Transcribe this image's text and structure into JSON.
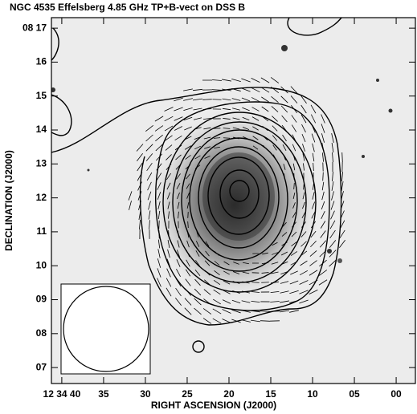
{
  "chart_data": {
    "type": "contour",
    "title": "NGC 4535 Effelsberg 4.85 GHz TP+B-vect on DSS B",
    "xlabel": "RIGHT ASCENSION (J2000)",
    "ylabel": "DECLINATION (J2000)",
    "xlim": [
      41.24,
      -2.3
    ],
    "xticks": [
      {
        "value": 40,
        "label": "12 34 40"
      },
      35,
      30,
      25,
      20,
      15,
      10,
      {
        "value": 5,
        "label": "05"
      },
      {
        "value": 0,
        "label": "00"
      }
    ],
    "ylim": [
      6.53,
      17.31
    ],
    "yticks": [
      {
        "value": 17,
        "label": "08 17"
      },
      16,
      15,
      14,
      13,
      12,
      11,
      10,
      {
        "value": 9,
        "label": "09"
      },
      {
        "value": 8,
        "label": "08"
      },
      {
        "value": 7,
        "label": "07"
      }
    ]
  }
}
